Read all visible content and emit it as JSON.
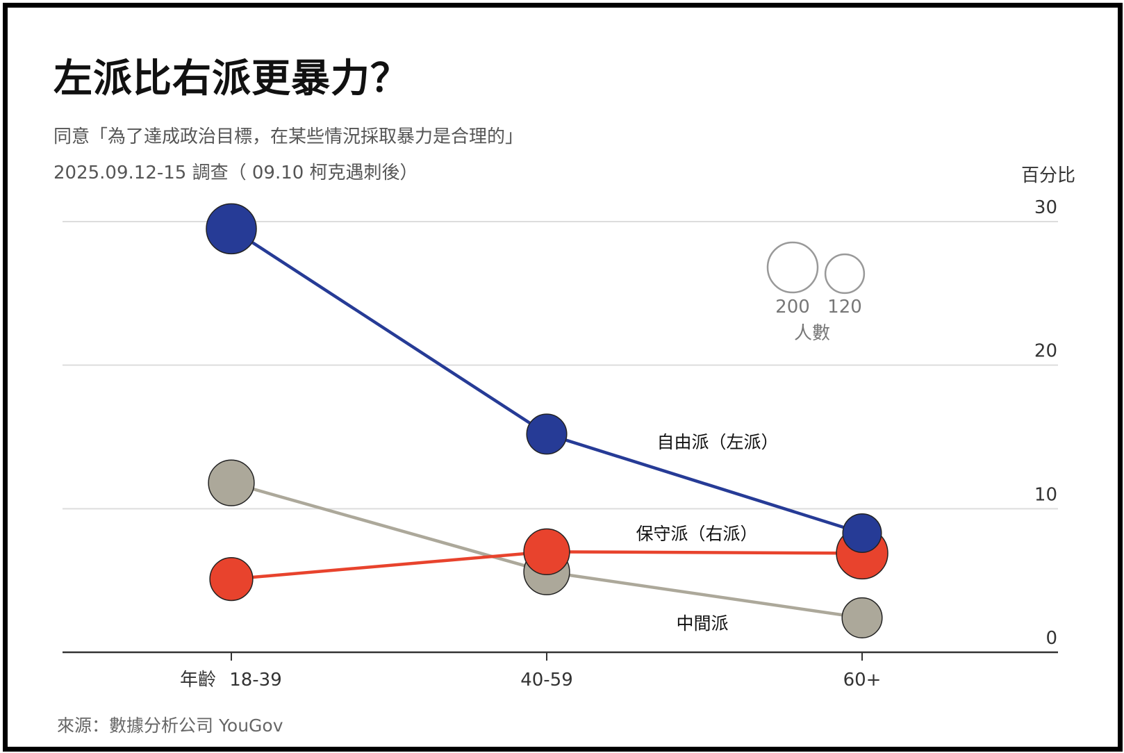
{
  "title": "左派比右派更暴力？",
  "subtitle": "同意「為了達成政治目標，在某些情況採取暴力是合理的」",
  "subtitle2": "2025.09.12-15 調查（ 09.10 柯克遇刺後）",
  "source": "來源：數據分析公司 YouGov",
  "chart_data": {
    "type": "line",
    "title": "左派比右派更暴力？",
    "xlabel": "年齡",
    "ylabel": "百分比",
    "categories": [
      "18-39",
      "40-59",
      "60+"
    ],
    "ylim": [
      0,
      30
    ],
    "yticks": [
      "0",
      "10",
      "20",
      "30"
    ],
    "grid": true,
    "series": [
      {
        "name": "自由派（左派）",
        "color": "#263b96",
        "values": [
          29.5,
          15.2,
          8.3
        ],
        "sizes": [
          200,
          128,
          119
        ]
      },
      {
        "name": "保守派（右派）",
        "color": "#e8432d",
        "values": [
          5.1,
          7.0,
          6.9
        ],
        "sizes": [
          147,
          167,
          211
        ]
      },
      {
        "name": "中間派",
        "color": "#aca89a",
        "values": [
          11.8,
          5.6,
          2.4
        ],
        "sizes": [
          167,
          167,
          128
        ]
      }
    ],
    "size_legend": {
      "title": "人數",
      "values": [
        200,
        120
      ],
      "labels": [
        "200",
        "120"
      ]
    }
  }
}
